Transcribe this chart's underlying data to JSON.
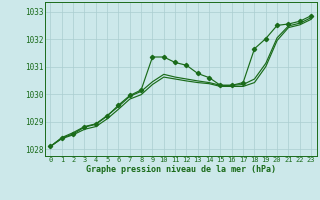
{
  "xlabel": "Graphe pression niveau de la mer (hPa)",
  "background_color": "#cce8ea",
  "grid_color": "#aacdd0",
  "line_color": "#1a6b1a",
  "x": [
    0,
    1,
    2,
    3,
    4,
    5,
    6,
    7,
    8,
    9,
    10,
    11,
    12,
    13,
    14,
    15,
    16,
    17,
    18,
    19,
    20,
    21,
    22,
    23
  ],
  "y_main": [
    1028.1,
    1028.4,
    1028.55,
    1028.8,
    1028.9,
    1029.2,
    1029.6,
    1029.95,
    1030.15,
    1031.35,
    1031.35,
    1031.15,
    1031.05,
    1030.75,
    1030.6,
    1030.32,
    1030.32,
    1030.42,
    1031.65,
    1032.02,
    1032.5,
    1032.55,
    1032.65,
    1032.85
  ],
  "y_low": [
    1028.1,
    1028.38,
    1028.52,
    1028.72,
    1028.82,
    1029.1,
    1029.45,
    1029.82,
    1029.98,
    1030.35,
    1030.62,
    1030.55,
    1030.48,
    1030.42,
    1030.38,
    1030.28,
    1030.28,
    1030.28,
    1030.42,
    1031.0,
    1031.95,
    1032.42,
    1032.52,
    1032.72
  ],
  "y_high": [
    1028.1,
    1028.42,
    1028.6,
    1028.82,
    1028.92,
    1029.22,
    1029.55,
    1029.92,
    1030.1,
    1030.45,
    1030.72,
    1030.62,
    1030.55,
    1030.48,
    1030.42,
    1030.32,
    1030.32,
    1030.35,
    1030.55,
    1031.12,
    1032.05,
    1032.48,
    1032.58,
    1032.78
  ],
  "ylim": [
    1027.75,
    1033.35
  ],
  "yticks": [
    1028,
    1029,
    1030,
    1031,
    1032,
    1033
  ],
  "xlim": [
    -0.5,
    23.5
  ],
  "xticks": [
    0,
    1,
    2,
    3,
    4,
    5,
    6,
    7,
    8,
    9,
    10,
    11,
    12,
    13,
    14,
    15,
    16,
    17,
    18,
    19,
    20,
    21,
    22,
    23
  ]
}
